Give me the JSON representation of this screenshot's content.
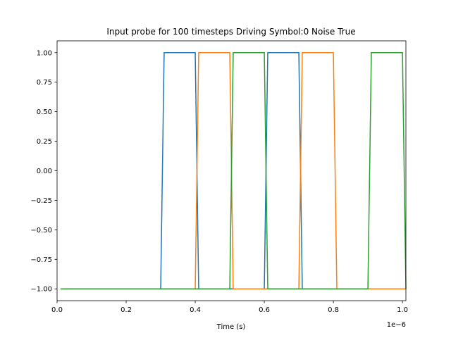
{
  "chart_data": {
    "type": "line",
    "title": "Input probe for 100 timesteps Driving Symbol:0 Noise True",
    "xlabel": "Time (s)",
    "ylabel": "",
    "x_offset_text": "1e−6",
    "xlim": [
      0,
      1.01
    ],
    "ylim": [
      -1.1,
      1.1
    ],
    "x_ticks": [
      0,
      0.2,
      0.4,
      0.6,
      0.8,
      1.0
    ],
    "x_tick_labels": [
      "0.0",
      "0.2",
      "0.4",
      "0.6",
      "0.8",
      "1.0"
    ],
    "y_ticks": [
      -1.0,
      -0.75,
      -0.5,
      -0.25,
      0.0,
      0.25,
      0.5,
      0.75,
      1.0
    ],
    "y_tick_labels": [
      "−1.00",
      "−0.75",
      "−0.50",
      "−0.25",
      "0.00",
      "0.25",
      "0.50",
      "0.75",
      "1.00"
    ],
    "grid": false,
    "legend": "none",
    "series": [
      {
        "color": "#1f77b4",
        "points": [
          [
            0.01,
            -1
          ],
          [
            0.3,
            -1
          ],
          [
            0.31,
            1
          ],
          [
            0.4,
            1
          ],
          [
            0.41,
            -1
          ],
          [
            0.6,
            -1
          ],
          [
            0.61,
            1
          ],
          [
            0.7,
            1
          ],
          [
            0.71,
            -1
          ],
          [
            1.01,
            -1
          ]
        ]
      },
      {
        "color": "#ff7f0e",
        "points": [
          [
            0.01,
            -1
          ],
          [
            0.4,
            -1
          ],
          [
            0.41,
            1
          ],
          [
            0.5,
            1
          ],
          [
            0.51,
            -1
          ],
          [
            0.7,
            -1
          ],
          [
            0.71,
            1
          ],
          [
            0.8,
            1
          ],
          [
            0.81,
            -1
          ],
          [
            1.01,
            -1
          ]
        ]
      },
      {
        "color": "#2ca02c",
        "points": [
          [
            0.01,
            -1
          ],
          [
            0.5,
            -1
          ],
          [
            0.51,
            1
          ],
          [
            0.6,
            1
          ],
          [
            0.61,
            -1
          ],
          [
            0.9,
            -1
          ],
          [
            0.91,
            1
          ],
          [
            1.0,
            1
          ],
          [
            1.01,
            -1
          ]
        ]
      }
    ]
  }
}
